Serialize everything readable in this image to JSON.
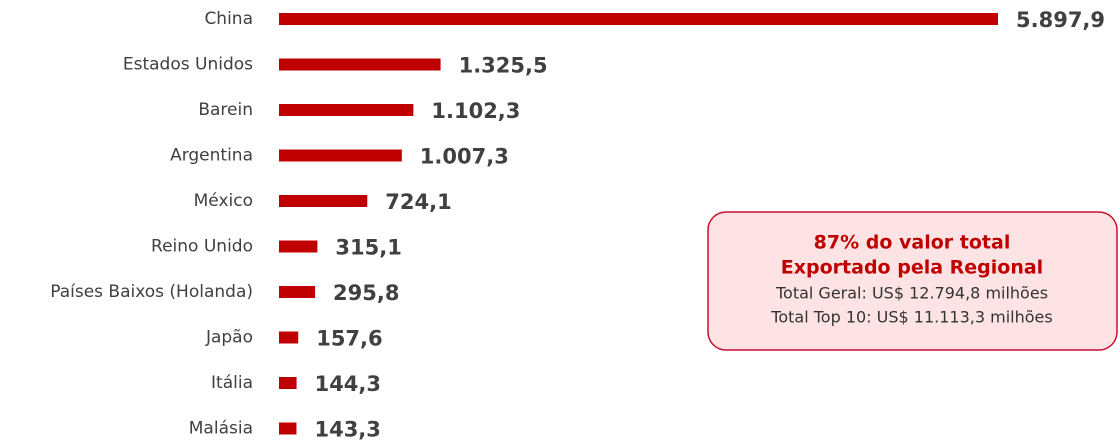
{
  "chart_data": {
    "type": "bar",
    "orientation": "horizontal",
    "categories": [
      "China",
      "Estados Unidos",
      "Barein",
      "Argentina",
      "México",
      "Reino Unido",
      "Países Baixos (Holanda)",
      "Japão",
      "Itália",
      "Malásia"
    ],
    "values": [
      5897.9,
      1325.5,
      1102.3,
      1007.3,
      724.1,
      315.1,
      295.8,
      157.6,
      144.3,
      143.3
    ],
    "value_labels": [
      "5.897,9",
      "1.325,5",
      "1.102,3",
      "1.007,3",
      "724,1",
      "315,1",
      "295,8",
      "157,6",
      "144,3",
      "143,3"
    ],
    "color": "#c00000",
    "annotations": [
      "87% do valor total",
      "Exportado pela Regional",
      "Total Geral: US$ 12.794,8 milhões",
      "Total Top 10: US$ 11.113,3 milhões"
    ]
  }
}
